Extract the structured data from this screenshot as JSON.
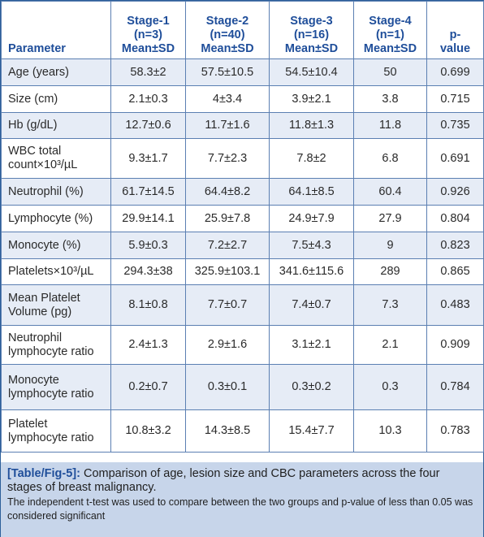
{
  "headers": [
    {
      "lines": [
        "Parameter"
      ]
    },
    {
      "lines": [
        "Stage-1",
        "(n=3)",
        "Mean±SD"
      ]
    },
    {
      "lines": [
        "Stage-2",
        "(n=40)",
        "Mean±SD"
      ]
    },
    {
      "lines": [
        "Stage-3",
        "(n=16)",
        "Mean±SD"
      ]
    },
    {
      "lines": [
        "Stage-4",
        "(n=1)",
        "Mean±SD"
      ]
    },
    {
      "lines": [
        "p-",
        "value"
      ]
    }
  ],
  "rows": [
    {
      "param": [
        "Age (years)"
      ],
      "values": [
        "58.3±2",
        "57.5±10.5",
        "54.5±10.4",
        "50",
        "0.699"
      ]
    },
    {
      "param": [
        "Size (cm)"
      ],
      "values": [
        "2.1±0.3",
        "4±3.4",
        "3.9±2.1",
        "3.8",
        "0.715"
      ]
    },
    {
      "param": [
        "Hb (g/dL)"
      ],
      "values": [
        "12.7±0.6",
        "11.7±1.6",
        "11.8±1.3",
        "11.8",
        "0.735"
      ]
    },
    {
      "param": [
        "WBC total",
        "count×10³/µL"
      ],
      "values": [
        "9.3±1.7",
        "7.7±2.3",
        "7.8±2",
        "6.8",
        "0.691"
      ]
    },
    {
      "param": [
        "Neutrophil (%)"
      ],
      "values": [
        "61.7±14.5",
        "64.4±8.2",
        "64.1±8.5",
        "60.4",
        "0.926"
      ]
    },
    {
      "param": [
        "Lymphocyte (%)"
      ],
      "values": [
        "29.9±14.1",
        "25.9±7.8",
        "24.9±7.9",
        "27.9",
        "0.804"
      ]
    },
    {
      "param": [
        "Monocyte (%)"
      ],
      "values": [
        "5.9±0.3",
        "7.2±2.7",
        "7.5±4.3",
        "9",
        "0.823"
      ]
    },
    {
      "param": [
        "Platelets×10³/µL"
      ],
      "values": [
        "294.3±38",
        "325.9±103.1",
        "341.6±115.6",
        "289",
        "0.865"
      ]
    },
    {
      "param": [
        "Mean Platelet",
        "Volume (pg)"
      ],
      "values": [
        "8.1±0.8",
        "7.7±0.7",
        "7.4±0.7",
        "7.3",
        "0.483"
      ]
    },
    {
      "param": [
        "Neutrophil",
        "lymphocyte ratio"
      ],
      "values": [
        "2.4±1.3",
        "2.9±1.6",
        "3.1±2.1",
        "2.1",
        "0.909"
      ]
    },
    {
      "param": [
        "Monocyte",
        "lymphocyte ratio"
      ],
      "values": [
        "0.2±0.7",
        "0.3±0.1",
        "0.3±0.2",
        "0.3",
        "0.784"
      ]
    },
    {
      "param": [
        "Platelet",
        "lymphocyte ratio"
      ],
      "values": [
        "10.8±3.2",
        "14.3±8.5",
        "15.4±7.7",
        "10.3",
        "0.783"
      ]
    }
  ],
  "caption": {
    "tag": "[Table/Fig-5]:",
    "text": " Comparison of age, lesion size and CBC parameters across the four stages of breast malignancy.",
    "note": "The independent t-test was used to compare between the two groups and p-value of less than 0.05 was considered significant"
  },
  "colors": {
    "header_text": "#1f4e9a",
    "border": "#5b7fb2",
    "stripe": "#e6ecf6",
    "caption_bg": "#c7d5ea"
  }
}
